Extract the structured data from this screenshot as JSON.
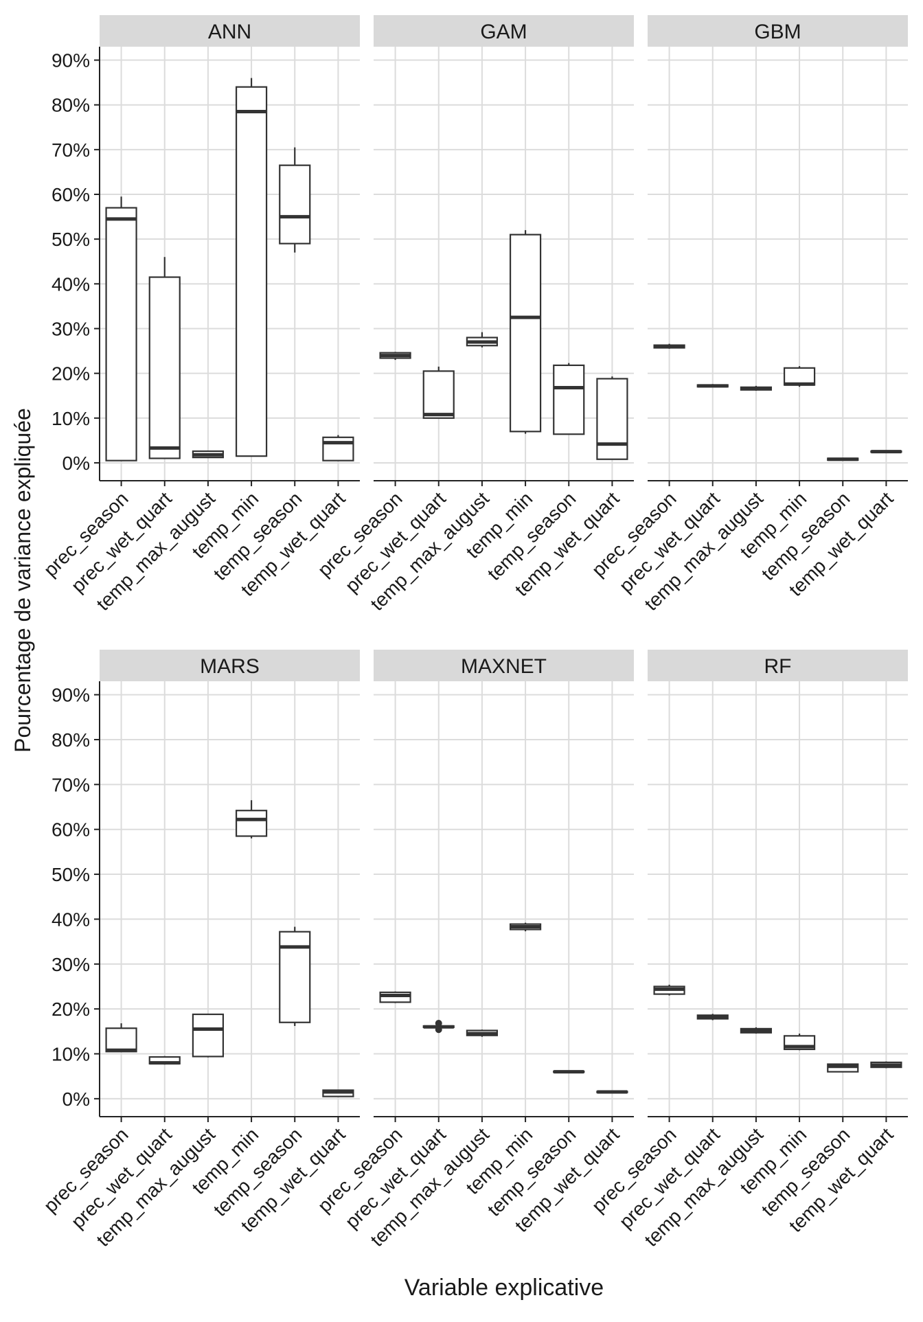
{
  "chart_data": {
    "type": "boxplot",
    "xlabel": "Variable explicative",
    "ylabel": "Pourcentage de variance expliquée",
    "ylim": [
      -4,
      93
    ],
    "yticks": [
      0,
      10,
      20,
      30,
      40,
      50,
      60,
      70,
      80,
      90
    ],
    "ytick_labels": [
      "0%",
      "10%",
      "20%",
      "30%",
      "40%",
      "50%",
      "60%",
      "70%",
      "80%",
      "90%"
    ],
    "categories": [
      "prec_season",
      "prec_wet_quart",
      "temp_max_august",
      "temp_min",
      "temp_season",
      "temp_wet_quart"
    ],
    "grid": true,
    "panels": [
      {
        "title": "ANN",
        "boxes": [
          {
            "min": 0.5,
            "q1": 0.5,
            "median": 54.5,
            "q3": 57,
            "max": 59.5,
            "outliers": []
          },
          {
            "min": 1,
            "q1": 1,
            "median": 3.3,
            "q3": 41.5,
            "max": 46,
            "outliers": []
          },
          {
            "min": 1.2,
            "q1": 1.2,
            "median": 1.8,
            "q3": 2.6,
            "max": 2.6,
            "outliers": []
          },
          {
            "min": 1.5,
            "q1": 1.5,
            "median": 78.5,
            "q3": 84,
            "max": 86,
            "outliers": []
          },
          {
            "min": 47,
            "q1": 49,
            "median": 55,
            "q3": 66.5,
            "max": 70.5,
            "outliers": []
          },
          {
            "min": 0.5,
            "q1": 0.5,
            "median": 4.5,
            "q3": 5.7,
            "max": 6.2,
            "outliers": []
          }
        ]
      },
      {
        "title": "GAM",
        "boxes": [
          {
            "min": 23,
            "q1": 23.4,
            "median": 24,
            "q3": 24.6,
            "max": 24.8,
            "outliers": []
          },
          {
            "min": 10,
            "q1": 10,
            "median": 10.8,
            "q3": 20.5,
            "max": 21.5,
            "outliers": []
          },
          {
            "min": 25.8,
            "q1": 26.2,
            "median": 27,
            "q3": 28,
            "max": 29.2,
            "outliers": []
          },
          {
            "min": 6.5,
            "q1": 7,
            "median": 32.5,
            "q3": 51,
            "max": 52,
            "outliers": []
          },
          {
            "min": 6.4,
            "q1": 6.4,
            "median": 16.8,
            "q3": 21.8,
            "max": 22.3,
            "outliers": []
          },
          {
            "min": 0.8,
            "q1": 0.8,
            "median": 4.2,
            "q3": 18.8,
            "max": 19.3,
            "outliers": []
          }
        ]
      },
      {
        "title": "GBM",
        "boxes": [
          {
            "min": 25.5,
            "q1": 25.7,
            "median": 26,
            "q3": 26.3,
            "max": 26.6,
            "outliers": []
          },
          {
            "min": 16.9,
            "q1": 17,
            "median": 17.2,
            "q3": 17.4,
            "max": 17.6,
            "outliers": []
          },
          {
            "min": 16.1,
            "q1": 16.3,
            "median": 16.6,
            "q3": 16.9,
            "max": 17.2,
            "outliers": []
          },
          {
            "min": 17,
            "q1": 17.4,
            "median": 17.6,
            "q3": 21.2,
            "max": 21.6,
            "outliers": []
          },
          {
            "min": 0.5,
            "q1": 0.6,
            "median": 0.8,
            "q3": 1,
            "max": 1.1,
            "outliers": []
          },
          {
            "min": 2.3,
            "q1": 2.4,
            "median": 2.5,
            "q3": 2.6,
            "max": 2.7,
            "outliers": []
          }
        ]
      },
      {
        "title": "MARS",
        "boxes": [
          {
            "min": 10.5,
            "q1": 10.5,
            "median": 10.8,
            "q3": 15.7,
            "max": 16.8,
            "outliers": []
          },
          {
            "min": 7.6,
            "q1": 7.8,
            "median": 8,
            "q3": 9.3,
            "max": 9.5,
            "outliers": []
          },
          {
            "min": 9.2,
            "q1": 9.4,
            "median": 15.5,
            "q3": 18.8,
            "max": 18.8,
            "outliers": []
          },
          {
            "min": 58,
            "q1": 58.5,
            "median": 62.2,
            "q3": 64.2,
            "max": 66.5,
            "outliers": []
          },
          {
            "min": 16.2,
            "q1": 17,
            "median": 33.8,
            "q3": 37.2,
            "max": 38.3,
            "outliers": []
          },
          {
            "min": 0.5,
            "q1": 0.5,
            "median": 1.5,
            "q3": 1.9,
            "max": 1.9,
            "outliers": []
          }
        ]
      },
      {
        "title": "MAXNET",
        "boxes": [
          {
            "min": 21.3,
            "q1": 21.5,
            "median": 23,
            "q3": 23.7,
            "max": 23.9,
            "outliers": []
          },
          {
            "min": 15.9,
            "q1": 15.9,
            "median": 16,
            "q3": 16.2,
            "max": 16.3,
            "outliers": [
              15.4,
              16.8
            ]
          },
          {
            "min": 13.8,
            "q1": 14.1,
            "median": 14.5,
            "q3": 15.2,
            "max": 15.4,
            "outliers": []
          },
          {
            "min": 37.3,
            "q1": 37.7,
            "median": 38.3,
            "q3": 38.9,
            "max": 39.2,
            "outliers": []
          },
          {
            "min": 5.8,
            "q1": 5.9,
            "median": 6,
            "q3": 6.1,
            "max": 6.2,
            "outliers": []
          },
          {
            "min": 1.3,
            "q1": 1.4,
            "median": 1.5,
            "q3": 1.6,
            "max": 1.7,
            "outliers": []
          }
        ]
      },
      {
        "title": "RF",
        "boxes": [
          {
            "min": 23,
            "q1": 23.3,
            "median": 24.4,
            "q3": 25,
            "max": 25.4,
            "outliers": []
          },
          {
            "min": 17.5,
            "q1": 17.8,
            "median": 18.2,
            "q3": 18.6,
            "max": 18.9,
            "outliers": []
          },
          {
            "min": 14.5,
            "q1": 14.7,
            "median": 15.2,
            "q3": 15.6,
            "max": 15.9,
            "outliers": []
          },
          {
            "min": 10.8,
            "q1": 11,
            "median": 11.6,
            "q3": 14,
            "max": 14.5,
            "outliers": []
          },
          {
            "min": 6,
            "q1": 6,
            "median": 7.2,
            "q3": 7.7,
            "max": 7.8,
            "outliers": []
          },
          {
            "min": 6.8,
            "q1": 7,
            "median": 7.5,
            "q3": 8.1,
            "max": 8.3,
            "outliers": []
          }
        ]
      }
    ]
  }
}
